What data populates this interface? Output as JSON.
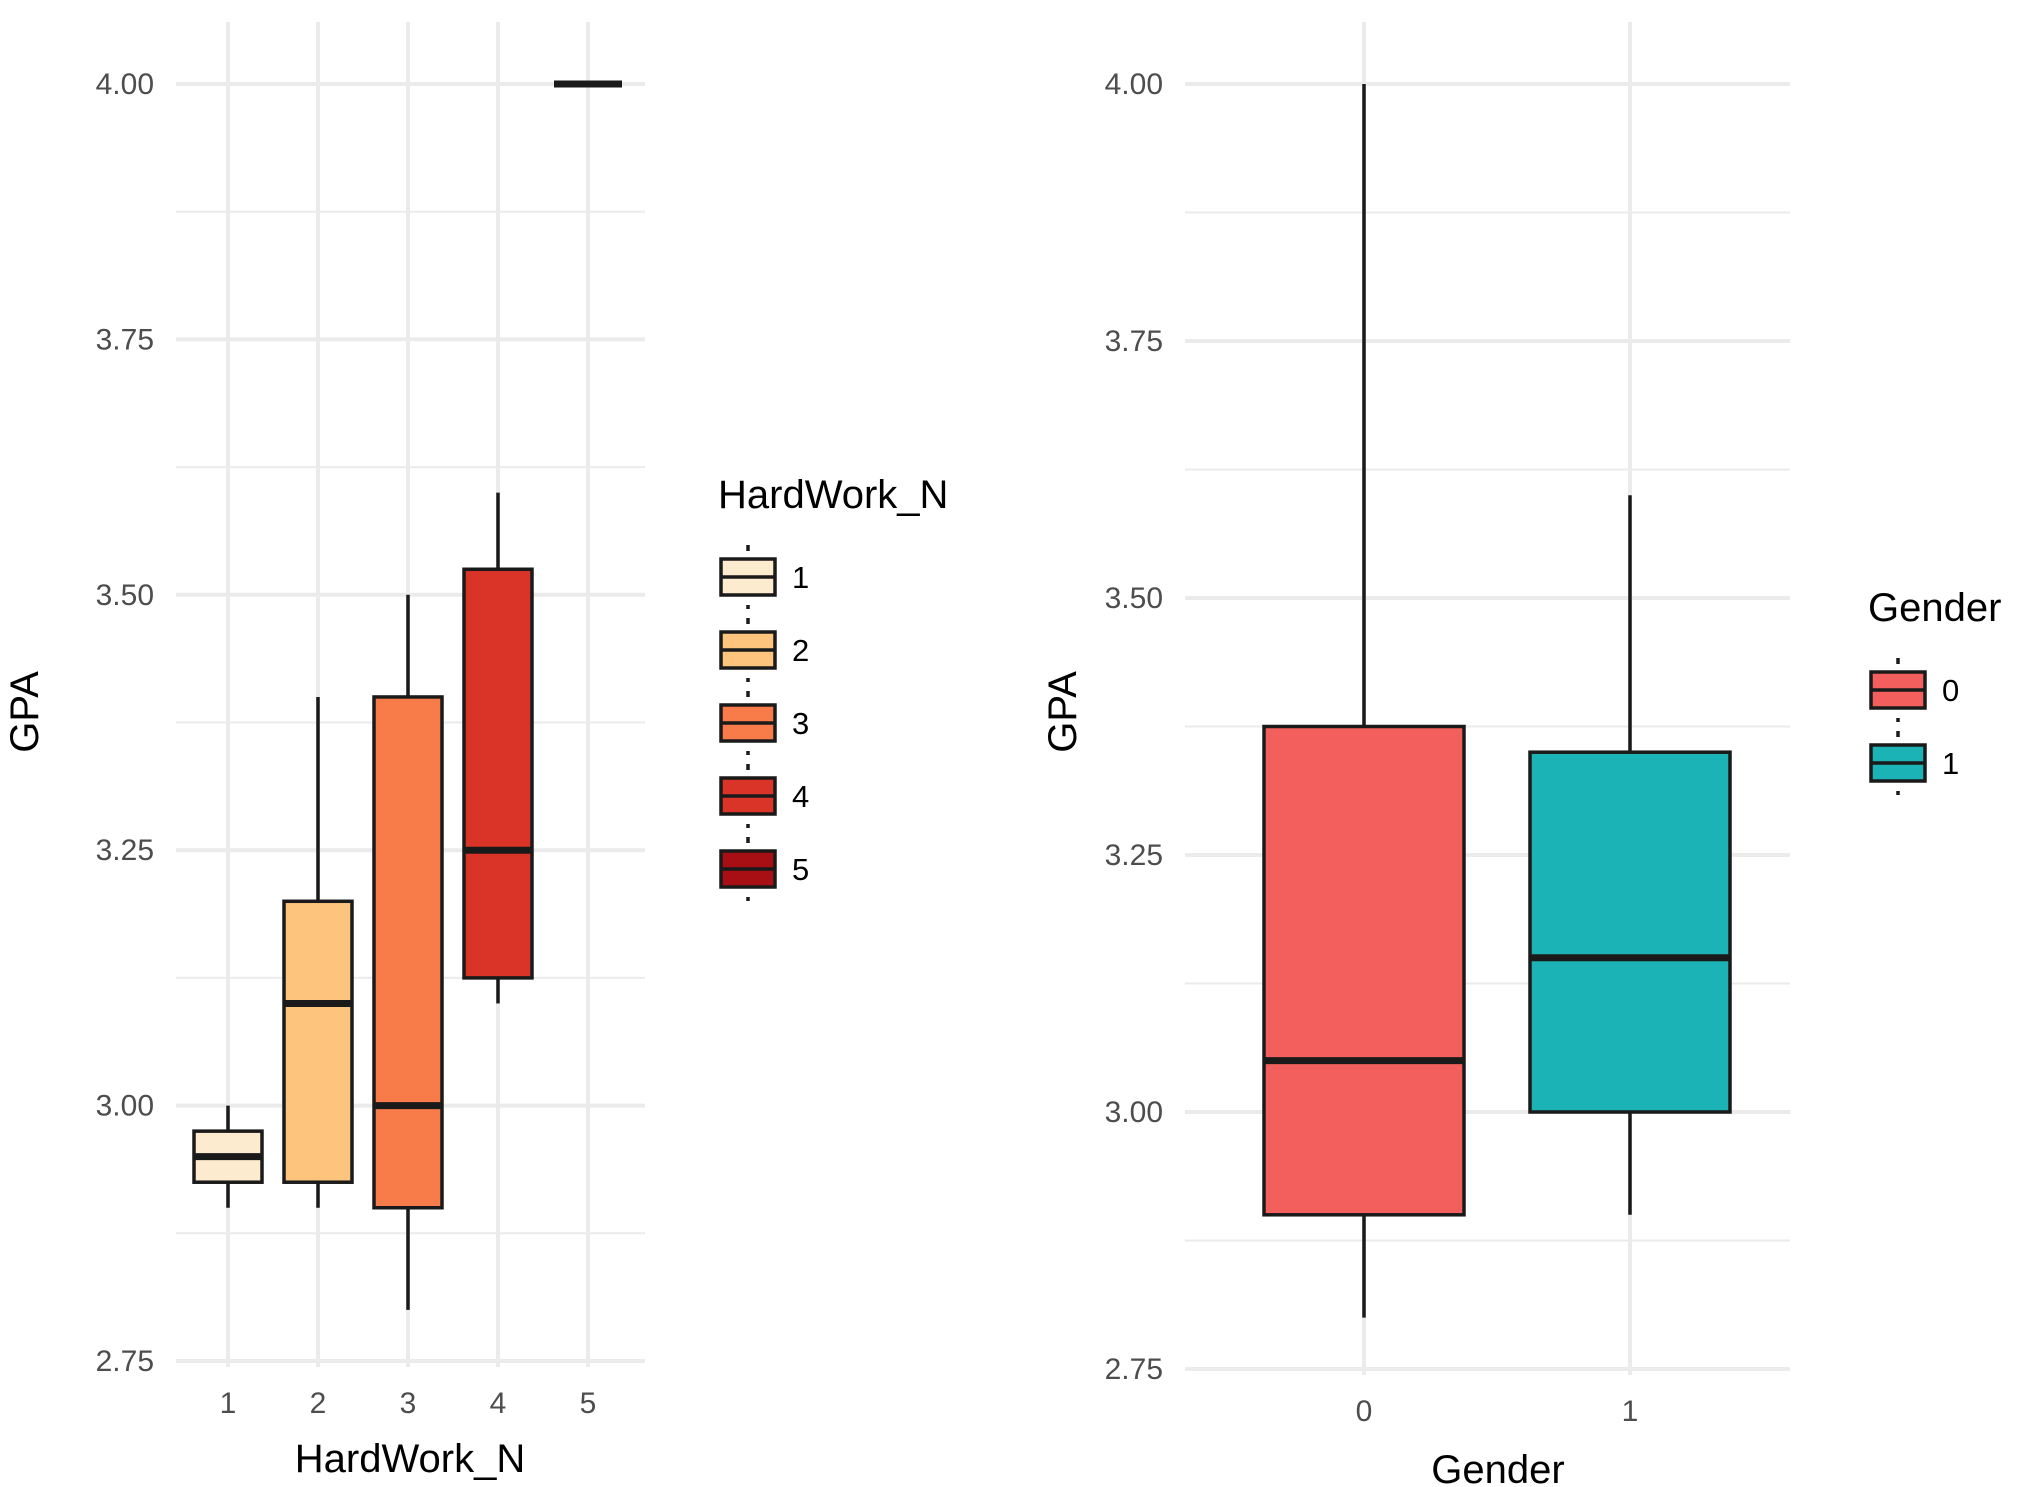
{
  "chart_data": [
    {
      "type": "boxplot",
      "xlabel": "HardWork_N",
      "ylabel": "GPA",
      "categories": [
        "1",
        "2",
        "3",
        "4",
        "5"
      ],
      "ylim": [
        2.75,
        4.0
      ],
      "yticks": [
        "2.75",
        "3.00",
        "3.25",
        "3.50",
        "3.75",
        "4.00"
      ],
      "grid": true,
      "legend": {
        "title": "HardWork_N",
        "position": "right",
        "labels": [
          "1",
          "2",
          "3",
          "4",
          "5"
        ]
      },
      "series": [
        {
          "name": "1",
          "min": 2.9,
          "q1": 2.925,
          "median": 2.95,
          "q3": 2.975,
          "max": 3.0
        },
        {
          "name": "2",
          "min": 2.9,
          "q1": 2.925,
          "median": 3.1,
          "q3": 3.2,
          "max": 3.4
        },
        {
          "name": "3",
          "min": 2.8,
          "q1": 2.9,
          "median": 3.0,
          "q3": 3.4,
          "max": 3.5
        },
        {
          "name": "4",
          "min": 3.1,
          "q1": 3.125,
          "median": 3.25,
          "q3": 3.525,
          "max": 3.6
        },
        {
          "name": "5",
          "min": 4.0,
          "q1": 4.0,
          "median": 4.0,
          "q3": 4.0,
          "max": 4.0
        }
      ],
      "colors": [
        "#fdebcf",
        "#fcc47d",
        "#f87c4a",
        "#d93427",
        "#a70f15"
      ]
    },
    {
      "type": "boxplot",
      "xlabel": "Gender",
      "ylabel": "GPA",
      "categories": [
        "0",
        "1"
      ],
      "ylim": [
        2.75,
        4.0
      ],
      "yticks": [
        "2.75",
        "3.00",
        "3.25",
        "3.50",
        "3.75",
        "4.00"
      ],
      "grid": true,
      "legend": {
        "title": "Gender",
        "position": "right",
        "labels": [
          "0",
          "1"
        ]
      },
      "series": [
        {
          "name": "0",
          "min": 2.8,
          "q1": 2.9,
          "median": 3.05,
          "q3": 3.375,
          "max": 4.0
        },
        {
          "name": "1",
          "min": 2.9,
          "q1": 3.0,
          "median": 3.15,
          "q3": 3.35,
          "max": 3.6
        }
      ],
      "colors": [
        "#f25f5c",
        "#1bb3b5"
      ]
    }
  ]
}
